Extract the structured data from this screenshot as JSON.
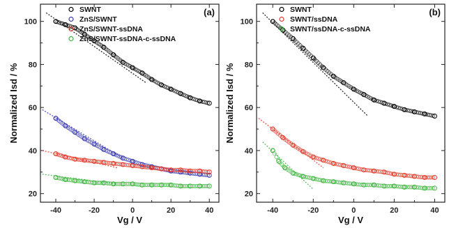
{
  "chart_data": [
    {
      "type": "scatter",
      "panel_label": "(a)",
      "xlabel": "Vg / V",
      "ylabel": "Normalized Isd / %",
      "xlim": [
        -48,
        45
      ],
      "ylim": [
        16,
        108
      ],
      "xticks": [
        -40,
        -20,
        0,
        20,
        40
      ],
      "yticks": [
        20,
        40,
        60,
        80,
        100
      ],
      "legend_position": "top-right",
      "series": [
        {
          "name": "SWNT",
          "color": "#000000",
          "x": [
            -40,
            -35,
            -30,
            -25,
            -20,
            -15,
            -10,
            -5,
            0,
            5,
            10,
            15,
            20,
            25,
            30,
            35,
            40
          ],
          "y": [
            100,
            98.5,
            97,
            94,
            91,
            88,
            84.5,
            81,
            78.5,
            76,
            73,
            70.5,
            68.5,
            66.5,
            64.5,
            63,
            62
          ],
          "fit": {
            "x": [
              -45,
              7
            ],
            "y": [
              104,
              71.5
            ]
          }
        },
        {
          "name": "ZnS/SWNT",
          "color": "#3a3ab0",
          "x": [
            -40,
            -35,
            -30,
            -25,
            -20,
            -15,
            -10,
            -5,
            0,
            5,
            10,
            15,
            20,
            25,
            30,
            35,
            40
          ],
          "y": [
            55,
            51.5,
            48.5,
            45.5,
            43,
            40.5,
            38.5,
            36.5,
            35,
            33.5,
            32.5,
            31.5,
            30.5,
            30,
            29.5,
            29,
            28.5
          ],
          "fit": {
            "x": [
              -47,
              -5
            ],
            "y": [
              59,
              36.5
            ]
          }
        },
        {
          "name": "ZnS/SWNT-ssDNA",
          "color": "#e03a2a",
          "x": [
            -40,
            -35,
            -30,
            -25,
            -20,
            -15,
            -10,
            -5,
            0,
            5,
            10,
            15,
            20,
            25,
            30,
            35,
            40
          ],
          "y": [
            38.5,
            37,
            36,
            35.5,
            35,
            34.5,
            34,
            33.5,
            33,
            32.5,
            32,
            31.5,
            31,
            31,
            30.5,
            30.5,
            30
          ],
          "fit": {
            "x": [
              -47,
              -8
            ],
            "y": [
              40,
              32
            ]
          }
        },
        {
          "name": "ZnS/SWNT-ssDNA-c-ssDNA",
          "color": "#3fb43f",
          "x": [
            -40,
            -35,
            -30,
            -25,
            -20,
            -15,
            -10,
            -5,
            0,
            5,
            10,
            15,
            20,
            25,
            30,
            35,
            40
          ],
          "y": [
            27.5,
            26.5,
            26,
            25.5,
            25,
            25,
            24.5,
            24.5,
            24.5,
            24,
            24,
            24,
            24,
            23.5,
            23.5,
            23.5,
            23.5
          ],
          "fit": {
            "x": [
              -47,
              -8
            ],
            "y": [
              29,
              24.5
            ]
          }
        }
      ]
    },
    {
      "type": "scatter",
      "panel_label": "(b)",
      "xlabel": "Vg / V",
      "ylabel": "Normalized Isd / %",
      "xlim": [
        -48,
        45
      ],
      "ylim": [
        16,
        108
      ],
      "xticks": [
        -40,
        -20,
        0,
        20,
        40
      ],
      "yticks": [
        20,
        40,
        60,
        80,
        100
      ],
      "legend_position": "top-right",
      "series": [
        {
          "name": "SWNT",
          "color": "#000000",
          "x": [
            -40,
            -35,
            -30,
            -25,
            -20,
            -15,
            -10,
            -5,
            0,
            5,
            10,
            15,
            20,
            25,
            30,
            35,
            40
          ],
          "y": [
            100,
            96,
            92,
            87.5,
            83,
            78.5,
            74.5,
            71.5,
            68.5,
            66,
            63.5,
            62,
            60.5,
            59,
            58,
            57,
            56
          ],
          "fit": {
            "x": [
              -45,
              7
            ],
            "y": [
              104,
              56
            ]
          }
        },
        {
          "name": "SWNT/ssDNA",
          "color": "#e03a2a",
          "x": [
            -40,
            -35,
            -30,
            -25,
            -20,
            -15,
            -10,
            -5,
            0,
            5,
            10,
            15,
            20,
            25,
            30,
            35,
            40
          ],
          "y": [
            50,
            46,
            42.5,
            39.5,
            37,
            35.5,
            34,
            33,
            32,
            31,
            30.5,
            30,
            29,
            28.5,
            28,
            27.5,
            27.5
          ],
          "fit": {
            "x": [
              -47,
              -15
            ],
            "y": [
              55,
              32
            ]
          }
        },
        {
          "name": "SWNT/ssDNA-c-ssDNA",
          "color": "#3fb43f",
          "x": [
            -40,
            -37,
            -34,
            -30,
            -25,
            -20,
            -15,
            -10,
            -5,
            0,
            5,
            10,
            15,
            20,
            25,
            30,
            35,
            40
          ],
          "y": [
            40,
            35,
            32,
            29.5,
            28,
            27,
            26,
            25.5,
            25,
            24.5,
            24,
            24,
            23.5,
            23.5,
            23,
            23,
            22.5,
            22.5
          ],
          "fit": {
            "x": [
              -45,
              -20
            ],
            "y": [
              44,
              22
            ]
          }
        }
      ]
    }
  ]
}
